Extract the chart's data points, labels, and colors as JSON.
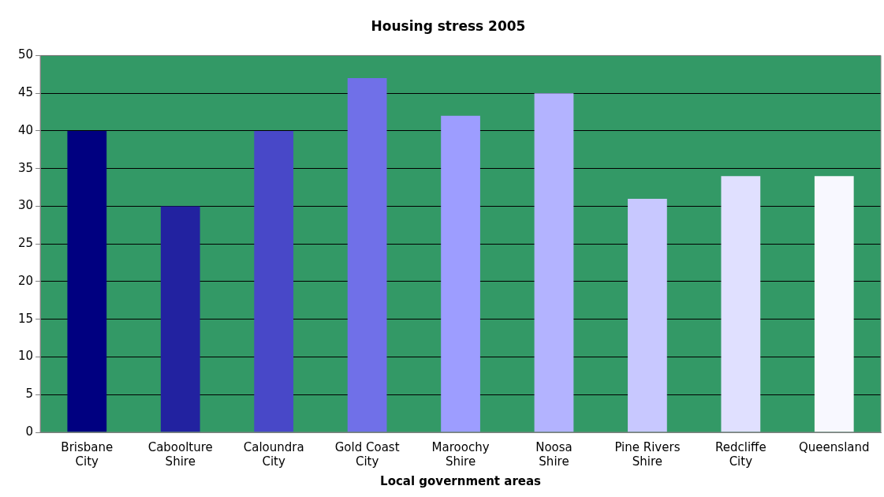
{
  "chart_data": {
    "type": "bar",
    "title": "Housing stress 2005",
    "xlabel": "Local government areas",
    "categories": [
      "Brisbane City",
      "Caboolture Shire",
      "Caloundra City",
      "Gold Coast City",
      "Maroochy Shire",
      "Noosa Shire",
      "Pine Rivers Shire",
      "Redcliffe City",
      "Queensland"
    ],
    "values": [
      40,
      30,
      40,
      47,
      42,
      45,
      31,
      34,
      34
    ],
    "colors": [
      "#000080",
      "#2222a0",
      "#4848c8",
      "#7070e8",
      "#9d9dff",
      "#b3b3ff",
      "#c8c8ff",
      "#e0e0ff",
      "#f8f8ff"
    ],
    "ylim": [
      0,
      50
    ],
    "yticks": [
      0,
      5,
      10,
      15,
      20,
      25,
      30,
      35,
      40,
      45,
      50
    ],
    "grid": "y",
    "legend": false
  }
}
